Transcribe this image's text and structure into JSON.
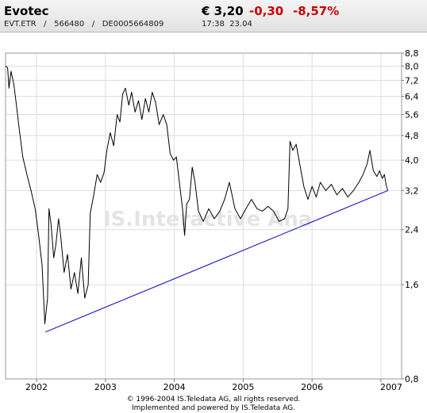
{
  "header": {
    "name": "Evotec",
    "exchange": "EVT.ETR",
    "wkn": "566480",
    "isin": "DE0005664809",
    "price": "€ 3,20",
    "change": "-0,30",
    "change_pct": "-8,57%",
    "time": "17:38",
    "date": "23.04"
  },
  "watermark": "IS.Interactive Ana",
  "footer": {
    "line1": "© 1996-2004 IS.Teledata AG, all rights reserved.",
    "line2": "Implemented and powered by IS.Teledata AG."
  },
  "colors": {
    "price_line": "#000000",
    "trend_line": "#0000cc",
    "grid": "#dddddd",
    "negative": "#cc0000"
  },
  "chart_data": {
    "type": "line",
    "y_scale": "log",
    "ylim": [
      0.8,
      8.8
    ],
    "y_ticks": [
      "0,8",
      "1,6",
      "2,4",
      "3,2",
      "4,0",
      "4,8",
      "5,6",
      "6,4",
      "7,2",
      "8,0",
      "8,8"
    ],
    "y_tick_values": [
      0.8,
      1.6,
      2.4,
      3.2,
      4.0,
      4.8,
      5.6,
      6.4,
      7.2,
      8.0,
      8.8
    ],
    "x_ticks": [
      "2002",
      "2003",
      "2004",
      "2005",
      "2006",
      "2007"
    ],
    "x_tick_values": [
      2002.0,
      2003.0,
      2004.0,
      2005.0,
      2006.0,
      2007.0
    ],
    "xlim": [
      2001.55,
      2007.3
    ],
    "grid": true,
    "series": [
      {
        "values": [
          [
            2001.55,
            8.0
          ],
          [
            2001.58,
            7.9
          ],
          [
            2001.6,
            6.8
          ],
          [
            2001.63,
            7.7
          ],
          [
            2001.67,
            7.0
          ],
          [
            2001.7,
            6.2
          ],
          [
            2001.75,
            5.0
          ],
          [
            2001.8,
            4.1
          ],
          [
            2001.86,
            3.6
          ],
          [
            2001.92,
            3.2
          ],
          [
            2001.98,
            2.8
          ],
          [
            2002.03,
            2.3
          ],
          [
            2002.08,
            1.85
          ],
          [
            2002.12,
            1.2
          ],
          [
            2002.16,
            1.45
          ],
          [
            2002.18,
            2.8
          ],
          [
            2002.21,
            2.5
          ],
          [
            2002.25,
            1.95
          ],
          [
            2002.28,
            2.15
          ],
          [
            2002.32,
            2.6
          ],
          [
            2002.35,
            2.3
          ],
          [
            2002.4,
            1.75
          ],
          [
            2002.45,
            2.0
          ],
          [
            2002.5,
            1.55
          ],
          [
            2002.55,
            1.75
          ],
          [
            2002.6,
            1.5
          ],
          [
            2002.65,
            1.95
          ],
          [
            2002.7,
            1.45
          ],
          [
            2002.75,
            1.6
          ],
          [
            2002.78,
            2.7
          ],
          [
            2002.83,
            3.1
          ],
          [
            2002.88,
            3.6
          ],
          [
            2002.93,
            3.4
          ],
          [
            2002.98,
            3.65
          ],
          [
            2003.02,
            4.3
          ],
          [
            2003.07,
            4.9
          ],
          [
            2003.12,
            4.45
          ],
          [
            2003.17,
            5.6
          ],
          [
            2003.21,
            5.3
          ],
          [
            2003.25,
            6.5
          ],
          [
            2003.29,
            6.8
          ],
          [
            2003.34,
            6.0
          ],
          [
            2003.38,
            6.6
          ],
          [
            2003.43,
            5.7
          ],
          [
            2003.48,
            6.2
          ],
          [
            2003.53,
            5.4
          ],
          [
            2003.58,
            6.3
          ],
          [
            2003.63,
            5.7
          ],
          [
            2003.68,
            6.6
          ],
          [
            2003.73,
            6.1
          ],
          [
            2003.78,
            5.2
          ],
          [
            2003.84,
            5.6
          ],
          [
            2003.89,
            5.2
          ],
          [
            2003.94,
            4.2
          ],
          [
            2003.99,
            4.0
          ],
          [
            2004.03,
            4.1
          ],
          [
            2004.08,
            3.3
          ],
          [
            2004.12,
            2.8
          ],
          [
            2004.15,
            2.3
          ],
          [
            2004.18,
            2.9
          ],
          [
            2004.22,
            3.0
          ],
          [
            2004.26,
            3.8
          ],
          [
            2004.3,
            3.4
          ],
          [
            2004.35,
            2.75
          ],
          [
            2004.42,
            2.55
          ],
          [
            2004.5,
            2.8
          ],
          [
            2004.58,
            2.6
          ],
          [
            2004.66,
            2.75
          ],
          [
            2004.73,
            3.0
          ],
          [
            2004.8,
            3.4
          ],
          [
            2004.88,
            2.8
          ],
          [
            2004.96,
            2.6
          ],
          [
            2005.04,
            2.8
          ],
          [
            2005.12,
            3.0
          ],
          [
            2005.2,
            2.8
          ],
          [
            2005.28,
            2.75
          ],
          [
            2005.36,
            2.85
          ],
          [
            2005.44,
            2.75
          ],
          [
            2005.52,
            2.55
          ],
          [
            2005.6,
            2.6
          ],
          [
            2005.65,
            2.8
          ],
          [
            2005.68,
            4.6
          ],
          [
            2005.72,
            4.3
          ],
          [
            2005.77,
            4.5
          ],
          [
            2005.82,
            3.9
          ],
          [
            2005.88,
            3.3
          ],
          [
            2005.94,
            3.0
          ],
          [
            2006.0,
            3.3
          ],
          [
            2006.06,
            3.05
          ],
          [
            2006.12,
            3.4
          ],
          [
            2006.2,
            3.2
          ],
          [
            2006.28,
            3.35
          ],
          [
            2006.36,
            3.1
          ],
          [
            2006.44,
            3.25
          ],
          [
            2006.52,
            3.05
          ],
          [
            2006.6,
            3.2
          ],
          [
            2006.68,
            3.4
          ],
          [
            2006.74,
            3.6
          ],
          [
            2006.8,
            3.9
          ],
          [
            2006.84,
            4.3
          ],
          [
            2006.89,
            3.7
          ],
          [
            2006.94,
            3.55
          ],
          [
            2006.98,
            3.7
          ],
          [
            2007.02,
            3.5
          ],
          [
            2007.05,
            3.6
          ],
          [
            2007.08,
            3.3
          ],
          [
            2007.1,
            3.2
          ]
        ]
      },
      {
        "type": "trendline",
        "values": [
          [
            2002.13,
            1.13
          ],
          [
            2007.1,
            3.2
          ]
        ]
      }
    ]
  }
}
